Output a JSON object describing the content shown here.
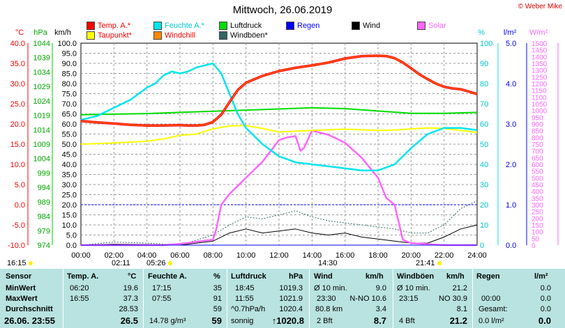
{
  "title": "Mittwoch, 26.06.2019",
  "copyright": "© Weber Mike",
  "axes": {
    "temp_unit": "°C",
    "pressure_unit": "hPa",
    "wind_unit": "km/h",
    "humidity_unit": "%",
    "rain_unit": "l/m²",
    "solar_unit": "W/m²",
    "temp_ticks": [
      "40.0",
      "35.0",
      "30.0",
      "25.0",
      "20.0",
      "15.0",
      "10.0",
      "5.0",
      "0.0",
      "-5.0",
      "-10.0"
    ],
    "pressure_ticks": [
      "1044",
      "1039",
      "1034",
      "1029",
      "1024",
      "1019",
      "1014",
      "1009",
      "1004",
      "999",
      "994",
      "989",
      "984",
      "979",
      "974"
    ],
    "wind_ticks": [
      "100.0",
      "95.0",
      "90.0",
      "85.0",
      "80.0",
      "75.0",
      "70.0",
      "65.0",
      "60.0",
      "55.0",
      "50.0",
      "45.0",
      "40.0",
      "35.0",
      "30.0",
      "25.0",
      "20.0",
      "15.0",
      "10.0",
      "5.0",
      "0.0"
    ],
    "humidity_ticks": [
      "100",
      "90",
      "80",
      "70",
      "60",
      "50",
      "40",
      "30",
      "20",
      "10",
      "0"
    ],
    "rain_ticks": [
      "5.0",
      "4.0",
      "3.0",
      "2.0",
      "1.0",
      "0.0"
    ],
    "solar_ticks": [
      "1500",
      "1450",
      "1400",
      "1350",
      "1300",
      "1250",
      "1200",
      "1150",
      "1100",
      "1050",
      "1000",
      "950",
      "900",
      "850",
      "800",
      "750",
      "700",
      "650",
      "600",
      "550",
      "500",
      "450",
      "400",
      "350",
      "300",
      "250",
      "200",
      "150",
      "100",
      "50",
      "0"
    ],
    "time_ticks": [
      "00:00",
      "02:00",
      "04:00",
      "06:00",
      "08:00",
      "10:00",
      "12:00",
      "14:00",
      "16:00",
      "18:00",
      "20:00",
      "22:00",
      "24:00"
    ]
  },
  "legend": [
    {
      "label": "Temp. A.*",
      "color": "#ff0000",
      "text_color": "#ff0000"
    },
    {
      "label": "Feuchte A.*",
      "color": "#00e5ee",
      "text_color": "#00c8d0"
    },
    {
      "label": "Luftdruck",
      "color": "#00dd00",
      "text_color": "#000000"
    },
    {
      "label": "Regen",
      "color": "#0000ff",
      "text_color": "#0000ff"
    },
    {
      "label": "Wind",
      "color": "#000000",
      "text_color": "#000000"
    },
    {
      "label": "Solar",
      "color": "#ff66ff",
      "text_color": "#ff66ff"
    },
    {
      "label": "Taupunkt*",
      "color": "#ffff00",
      "text_color": "#ff0000"
    },
    {
      "label": "Windchill",
      "color": "#ff8800",
      "text_color": "#ff0000"
    },
    {
      "label": "Windböen*",
      "color": "#336666",
      "text_color": "#000000"
    }
  ],
  "markers": {
    "sunrise_left": "16:15",
    "time1": "02:11",
    "time2": "05:26",
    "time3": "14:30",
    "time4": "21:41"
  },
  "chart_data": {
    "type": "line",
    "x_unit": "hours",
    "xlim": [
      0,
      24
    ],
    "series": [
      {
        "name": "Temp. A.*",
        "unit": "°C",
        "x": [
          0,
          1,
          2,
          3,
          4,
          5,
          6,
          6.5,
          7,
          7.5,
          8,
          8.5,
          9,
          9.5,
          10,
          11,
          12,
          13,
          14,
          15,
          16,
          17,
          18,
          18.5,
          19,
          19.5,
          20,
          20.5,
          21,
          21.5,
          22,
          22.5,
          23,
          23.5,
          24
        ],
        "y": [
          20.7,
          20.4,
          20.1,
          19.8,
          19.6,
          19.6,
          19.7,
          19.6,
          19.6,
          19.8,
          20.5,
          22.3,
          25.4,
          28.4,
          30.2,
          31.9,
          33.1,
          33.9,
          34.5,
          35.2,
          36.2,
          36.8,
          36.9,
          36.8,
          36.3,
          35.2,
          33.8,
          32.3,
          31.1,
          30.0,
          29.2,
          28.8,
          28.6,
          28.0,
          27.4
        ]
      },
      {
        "name": "Feuchte A.*",
        "unit": "%",
        "x": [
          0,
          1,
          2,
          3,
          4,
          4.5,
          5,
          5.5,
          6,
          6.5,
          7,
          7.5,
          8,
          8.5,
          9,
          9.5,
          10,
          11,
          12,
          13,
          14,
          15,
          16,
          17,
          18,
          19,
          20,
          21,
          22,
          23,
          24
        ],
        "y": [
          62,
          64,
          68,
          72,
          78,
          80,
          84,
          86,
          85,
          86,
          88,
          89,
          90,
          85,
          75,
          65,
          58,
          50,
          44,
          41,
          40,
          39,
          38,
          37,
          37,
          40,
          48,
          55,
          58,
          58,
          57
        ]
      },
      {
        "name": "Luftdruck",
        "unit": "hPa",
        "x": [
          0,
          2,
          4,
          6,
          8,
          10,
          12,
          14,
          16,
          18,
          20,
          22,
          24
        ],
        "y": [
          1019.2,
          1019.4,
          1019.6,
          1020.0,
          1020.4,
          1020.8,
          1021.2,
          1021.6,
          1021.3,
          1020.5,
          1019.7,
          1019.7,
          1020.0
        ]
      },
      {
        "name": "Taupunkt*",
        "unit": "°C",
        "x": [
          0,
          2,
          4,
          5,
          6,
          7,
          8,
          9,
          10,
          11,
          12,
          14,
          16,
          18,
          19,
          20,
          21,
          22,
          23,
          24
        ],
        "y": [
          15.0,
          15.3,
          15.7,
          16.3,
          17.2,
          17.5,
          18.8,
          19.5,
          19.6,
          18.9,
          18.0,
          18.4,
          18.7,
          18.4,
          18.5,
          18.8,
          19.0,
          18.9,
          18.4,
          17.9
        ]
      },
      {
        "name": "Wind",
        "unit": "km/h",
        "x": [
          0,
          2,
          4,
          6,
          8,
          9,
          10,
          11,
          12,
          13,
          14,
          15,
          16,
          17,
          18,
          19,
          20,
          21,
          22,
          23,
          24
        ],
        "y": [
          0,
          0.5,
          0.3,
          0,
          2,
          6,
          8,
          6,
          7,
          8,
          6,
          5,
          6,
          4,
          3,
          2,
          1,
          1,
          4,
          8,
          10
        ]
      },
      {
        "name": "Windböen*",
        "unit": "km/h",
        "x": [
          0,
          2,
          4,
          6,
          8,
          9,
          10,
          11,
          12,
          13,
          14,
          15,
          16,
          17,
          18,
          19,
          20,
          21,
          22,
          23,
          24
        ],
        "y": [
          0,
          1.5,
          1,
          0,
          5,
          10,
          14,
          13,
          15,
          17,
          14,
          12,
          11,
          10,
          9,
          8,
          6,
          6,
          10,
          18,
          22
        ]
      },
      {
        "name": "Solar",
        "unit": "W/m²",
        "x": [
          0,
          5,
          6,
          7,
          7.6,
          8,
          8.2,
          8.5,
          9,
          10,
          11,
          11.5,
          12,
          12.5,
          13,
          13.3,
          13.5,
          14,
          15,
          16,
          17,
          18,
          18.5,
          19,
          19.5,
          20,
          22,
          24
        ],
        "y": [
          0,
          0,
          10,
          25,
          35,
          40,
          120,
          300,
          380,
          500,
          620,
          700,
          780,
          800,
          810,
          700,
          720,
          850,
          820,
          760,
          650,
          500,
          350,
          300,
          40,
          15,
          0,
          0
        ]
      },
      {
        "name": "Regen",
        "unit": "l/m²",
        "x": [
          0,
          24
        ],
        "y": [
          0,
          0
        ]
      }
    ]
  },
  "table": {
    "headers": {
      "sensor": "Sensor",
      "temp": "Temp. A.",
      "temp_unit": "°C",
      "hum": "Feuchte A.",
      "hum_unit": "%",
      "press": "Luftdruck",
      "press_unit": "hPa",
      "wind": "Wind",
      "wind_unit": "km/h",
      "gust": "Windböen",
      "gust_unit": "km/h",
      "rain": "Regen",
      "rain_unit": "l/m²"
    },
    "rows": {
      "min": {
        "label": "MinWert",
        "temp_time": "06:20",
        "temp_val": "19.6",
        "hum_time": "17:15",
        "hum_val": "35",
        "press_time": "18:45",
        "press_val": "1019.3",
        "wind_a": "Ø 10 min.",
        "wind_val": "9.0",
        "gust_a": "Ø 10 min.",
        "gust_val": "21.2",
        "rain_a": "",
        "rain_val": "0.0"
      },
      "max": {
        "label": "MaxWert",
        "temp_time": "16:55",
        "temp_val": "37.3",
        "hum_time": "07:55",
        "hum_val": "91",
        "press_time": "11:55",
        "press_val": "1021.9",
        "wind_a": "23:30",
        "wind_b": "N-NO 10.6",
        "gust_a": "23:15",
        "gust_b": "NO 30.9",
        "rain_a": "00:00",
        "rain_val": "0.0"
      },
      "avg": {
        "label": "Durchschnitt",
        "temp_val": "28.53",
        "hum_val": "59",
        "press_a": "^0.7hPa/h",
        "press_val": "1020.4",
        "wind_a": "80.8 km",
        "wind_val": "3.4",
        "gust_val": "8.1",
        "rain_a": "Gesamt:",
        "rain_val": "0.0"
      },
      "now": {
        "label": "26.06. 23:55",
        "temp_val": "26.5",
        "hum_a": "14.78 g/m³",
        "hum_val": "59",
        "press_a": "sonnig",
        "press_val": "↑1020.8",
        "wind_a": "2 Bft",
        "wind_val": "8.7",
        "gust_a": "4 Bft",
        "gust_val": "21.2",
        "rain_a": "0.0 l/m²",
        "rain_val": "0.0"
      }
    }
  }
}
